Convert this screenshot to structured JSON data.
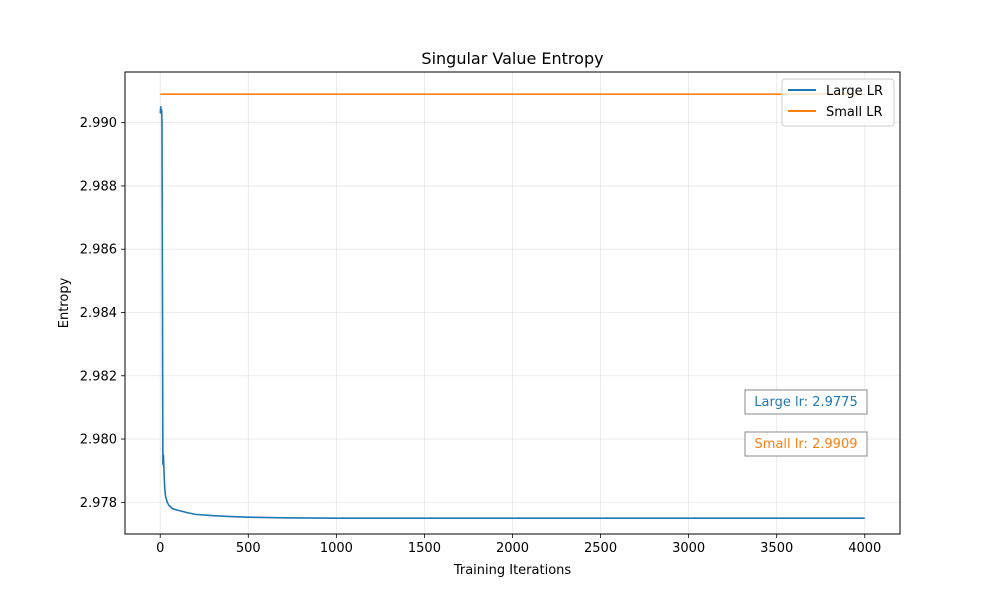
{
  "chart_data": {
    "type": "line",
    "title": "Singular Value Entropy",
    "xlabel": "Training Iterations",
    "ylabel": "Entropy",
    "xlim": [
      -200,
      4200
    ],
    "ylim": [
      2.977,
      2.9916
    ],
    "xticks": [
      0,
      500,
      1000,
      1500,
      2000,
      2500,
      3000,
      3500,
      4000
    ],
    "xtick_labels": [
      "0",
      "500",
      "1000",
      "1500",
      "2000",
      "2500",
      "3000",
      "3500",
      "4000"
    ],
    "yticks": [
      2.978,
      2.98,
      2.982,
      2.984,
      2.986,
      2.988,
      2.99
    ],
    "ytick_labels": [
      "2.978",
      "2.980",
      "2.982",
      "2.984",
      "2.986",
      "2.988",
      "2.990"
    ],
    "grid": true,
    "legend_position": "top-right",
    "series": [
      {
        "name": "Large LR",
        "color": "#1f77b4",
        "x": [
          0,
          3,
          5,
          8,
          10,
          12,
          15,
          18,
          20,
          25,
          30,
          40,
          50,
          70,
          100,
          150,
          200,
          300,
          400,
          500,
          700,
          1000,
          1500,
          2000,
          2500,
          3000,
          3500,
          4000
        ],
        "y": [
          2.9903,
          2.9905,
          2.9903,
          2.9904,
          2.99,
          2.986,
          2.9792,
          2.9795,
          2.9792,
          2.9785,
          2.9782,
          2.978,
          2.9779,
          2.9778,
          2.97775,
          2.97768,
          2.97762,
          2.97758,
          2.97755,
          2.97753,
          2.97751,
          2.9775,
          2.9775,
          2.9775,
          2.9775,
          2.9775,
          2.9775,
          2.9775
        ]
      },
      {
        "name": "Small LR",
        "color": "#ff7f0e",
        "x": [
          0,
          4000
        ],
        "y": [
          2.9909,
          2.9909
        ]
      }
    ],
    "annotations": [
      {
        "text": "Large lr: 2.9775",
        "color": "#1f77b4"
      },
      {
        "text": "Small lr: 2.9909",
        "color": "#ff7f0e"
      }
    ]
  }
}
